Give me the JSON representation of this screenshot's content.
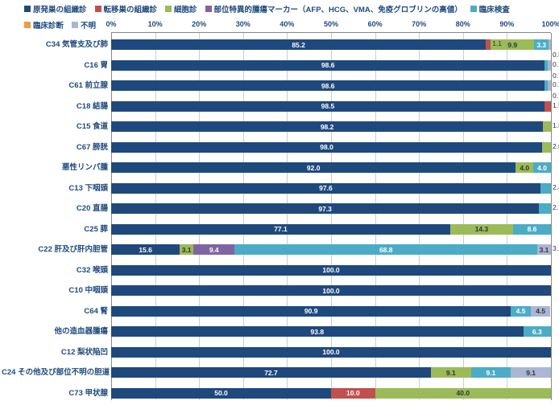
{
  "type": "stacked-bar-horizontal",
  "background_color": "#ffffff",
  "grid_color": "#cccccc",
  "font_color": "#1f497d",
  "xlim": [
    0,
    100
  ],
  "xtick_step": 10,
  "xtick_labels": [
    "0%",
    "10%",
    "20%",
    "30%",
    "40%",
    "50%",
    "60%",
    "70%",
    "80%",
    "90%",
    "100%"
  ],
  "series": [
    {
      "key": "s1",
      "label": "原発巣の組織診",
      "color": "#1f497d"
    },
    {
      "key": "s2",
      "label": "転移巣の組織診",
      "color": "#c0504d"
    },
    {
      "key": "s3",
      "label": "細胞診",
      "color": "#9bbb59"
    },
    {
      "key": "s4",
      "label": "部位特異的腫瘍マーカー（AFP、HCG、VMA、免疫グロブリンの高値）",
      "color": "#8064a2"
    },
    {
      "key": "s5",
      "label": "臨床検査",
      "color": "#4bacc6"
    },
    {
      "key": "s6",
      "label": "臨床診断",
      "color": "#f79646"
    },
    {
      "key": "s7",
      "label": "不明",
      "color": "#aab6d3"
    }
  ],
  "rows": [
    {
      "label": "C34 気管支及び肺",
      "values": {
        "s1": 85.2,
        "s2": 1.1,
        "s3": 9.9,
        "s5": 3.3,
        "s7": 0.5
      },
      "callouts": [
        {
          "text": "1.1",
          "pct": 86.3,
          "dy": 0
        },
        {
          "text": "0.5",
          "pct": 100,
          "dy": 14
        }
      ]
    },
    {
      "label": "C16 胃",
      "values": {
        "s1": 98.6,
        "s5": 0.7,
        "s7": 0.7
      },
      "callouts": [
        {
          "text": "0.7",
          "pct": 99.3,
          "dy": 0
        },
        {
          "text": "0.7",
          "pct": 100,
          "dy": 14
        }
      ]
    },
    {
      "label": "C61 前立腺",
      "values": {
        "s1": 98.6,
        "s5": 0.7,
        "s7": 0.7
      },
      "callouts": [
        {
          "text": "0.7",
          "pct": 99.3,
          "dy": 0
        },
        {
          "text": "0.7",
          "pct": 100,
          "dy": 14
        }
      ]
    },
    {
      "label": "C18 結腸",
      "values": {
        "s1": 98.5,
        "s2": 1.5
      },
      "callouts": [
        {
          "text": "1.5",
          "pct": 100,
          "dy": 0
        }
      ]
    },
    {
      "label": "C15 食道",
      "values": {
        "s1": 98.2,
        "s3": 1.8
      },
      "callouts": [
        {
          "text": "1.8",
          "pct": 100,
          "dy": 0
        }
      ]
    },
    {
      "label": "C67 膀胱",
      "values": {
        "s1": 98.0,
        "s3": 2.0
      },
      "callouts": [
        {
          "text": "2.0",
          "pct": 100,
          "dy": 0
        }
      ]
    },
    {
      "label": "悪性リンパ腫",
      "values": {
        "s1": 92.0,
        "s3": 4.0,
        "s5": 4.0
      }
    },
    {
      "label": "C13 下咽頭",
      "values": {
        "s1": 97.6,
        "s5": 2.4
      },
      "callouts": [
        {
          "text": "2.4",
          "pct": 100,
          "dy": 0
        }
      ]
    },
    {
      "label": "C20 直腸",
      "values": {
        "s1": 97.3,
        "s5": 2.7
      },
      "callouts": [
        {
          "text": "2.7",
          "pct": 100,
          "dy": 0
        }
      ]
    },
    {
      "label": "C25 膵",
      "values": {
        "s1": 77.1,
        "s3": 14.3,
        "s5": 8.6
      }
    },
    {
      "label": "C22 肝及び肝内胆管",
      "values": {
        "s1": 15.6,
        "s3": 3.1,
        "s4": 9.4,
        "s5": 68.8,
        "s7": 3.1
      },
      "callouts": [
        {
          "text": "3.1",
          "pct": 100,
          "dy": 0
        }
      ]
    },
    {
      "label": "C32 喉頭",
      "values": {
        "s1": 100.0
      }
    },
    {
      "label": "C10 中咽頭",
      "values": {
        "s1": 100.0
      }
    },
    {
      "label": "C64 腎",
      "values": {
        "s1": 90.9,
        "s5": 4.5,
        "s7": 4.5
      }
    },
    {
      "label": "他の造血器腫瘍",
      "values": {
        "s1": 93.8,
        "s5": 6.3
      }
    },
    {
      "label": "C12 梨状陥凹",
      "values": {
        "s1": 100.0
      }
    },
    {
      "label": "C24 その他及び部位不明の胆道",
      "values": {
        "s1": 72.7,
        "s3": 9.1,
        "s5": 9.1,
        "s7": 9.1
      }
    },
    {
      "label": "C73 甲状腺",
      "values": {
        "s1": 50.0,
        "s2": 10.0,
        "s3": 40.0
      }
    }
  ]
}
